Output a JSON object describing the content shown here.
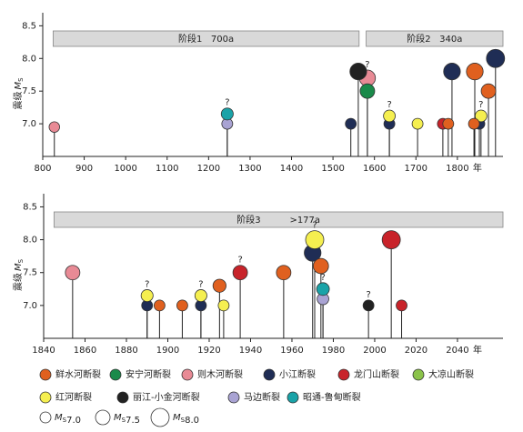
{
  "chart_data": [
    {
      "type": "lollipop",
      "x_label": "年",
      "y_label": "震级",
      "xlim": [
        800,
        1910
      ],
      "xticks": [
        800,
        900,
        1000,
        1100,
        1200,
        1300,
        1400,
        1500,
        1600,
        1700,
        1800
      ],
      "ylim": [
        6.5,
        8.7
      ],
      "yticks": [
        {
          "value": 7,
          "label": "7.0"
        },
        {
          "value": 7.5,
          "label": "7.5"
        },
        {
          "value": 8,
          "label": "8.0"
        },
        {
          "value": 8.5,
          "label": "8.5"
        }
      ],
      "phases": [
        {
          "label": "阶段1   700a",
          "span": [
            825,
            1563
          ]
        },
        {
          "label": "阶段2   340a",
          "span": [
            1580,
            1910
          ]
        }
      ],
      "series": [
        {
          "color": "#e88a95",
          "x": [
            828,
            1583
          ],
          "values": [
            6.95,
            7.7
          ],
          "notes": [
            null,
            "?"
          ]
        },
        {
          "color": "#a9a3d3",
          "x": [
            1245
          ],
          "values": [
            7.0
          ],
          "notes": [
            null
          ]
        },
        {
          "color": "#1aa3a8",
          "x": [
            1245
          ],
          "values": [
            7.15
          ],
          "notes": [
            "?"
          ]
        },
        {
          "color": "#1f2d55",
          "x": [
            1543,
            1636,
            1787,
            1853,
            1892
          ],
          "values": [
            7.0,
            7.0,
            7.8,
            7.0,
            8.0
          ],
          "notes": [
            null,
            null,
            null,
            null,
            null
          ]
        },
        {
          "color": "#222222",
          "x": [
            1561
          ],
          "values": [
            7.8
          ],
          "notes": [
            null
          ]
        },
        {
          "color": "#1a8a4a",
          "x": [
            1583
          ],
          "values": [
            7.5
          ],
          "notes": [
            null
          ]
        },
        {
          "color": "#f5ef50",
          "x": [
            1636,
            1704,
            1857
          ],
          "values": [
            7.12,
            7.0,
            7.12
          ],
          "notes": [
            "?",
            null,
            "?"
          ]
        },
        {
          "color": "#c8232a",
          "x": [
            1765
          ],
          "values": [
            7.0
          ],
          "notes": [
            null
          ]
        },
        {
          "color": "#e0601f",
          "x": [
            1778,
            1842,
            1840,
            1875
          ],
          "values": [
            7.0,
            7.8,
            7.0,
            7.5
          ],
          "notes": [
            null,
            null,
            null,
            null
          ]
        }
      ]
    },
    {
      "type": "lollipop",
      "x_label": "年",
      "y_label": "震级",
      "xlim": [
        1840,
        2062
      ],
      "xticks": [
        1840,
        1860,
        1880,
        1900,
        1920,
        1940,
        1960,
        1980,
        2000,
        2020,
        2040
      ],
      "ylim": [
        6.5,
        8.7
      ],
      "yticks": [
        {
          "value": 7,
          "label": "7.0"
        },
        {
          "value": 7.5,
          "label": "7.5"
        },
        {
          "value": 8,
          "label": "8.0"
        },
        {
          "value": 8.5,
          "label": "8.5"
        }
      ],
      "phases": [
        {
          "label": "阶段3          >177a",
          "span": [
            1845,
            2062
          ]
        }
      ],
      "series": [
        {
          "color": "#e88a95",
          "x": [
            1854
          ],
          "values": [
            7.5
          ],
          "notes": [
            null
          ]
        },
        {
          "color": "#1f2d55",
          "x": [
            1890,
            1916,
            1970
          ],
          "values": [
            7.0,
            7.0,
            7.8
          ],
          "notes": [
            null,
            null,
            null
          ]
        },
        {
          "color": "#f5ef50",
          "x": [
            1890,
            1916,
            1927,
            1971
          ],
          "values": [
            7.15,
            7.15,
            7.0,
            8.0
          ],
          "notes": [
            "?",
            "?",
            null,
            "?"
          ]
        },
        {
          "color": "#e0601f",
          "x": [
            1896,
            1907,
            1925,
            1956,
            1974
          ],
          "values": [
            7.0,
            7.0,
            7.3,
            7.5,
            7.6
          ],
          "notes": [
            null,
            null,
            null,
            null,
            null
          ]
        },
        {
          "color": "#c8232a",
          "x": [
            1935,
            2008,
            2013
          ],
          "values": [
            7.5,
            8.0,
            7.0
          ],
          "notes": [
            "?",
            null,
            null
          ]
        },
        {
          "color": "#a9a3d3",
          "x": [
            1975
          ],
          "values": [
            7.1
          ],
          "notes": [
            null
          ]
        },
        {
          "color": "#1aa3a8",
          "x": [
            1975
          ],
          "values": [
            7.25
          ],
          "notes": [
            "?"
          ]
        },
        {
          "color": "#222222",
          "x": [
            1997
          ],
          "values": [
            7.0
          ],
          "notes": [
            "?"
          ]
        }
      ]
    }
  ],
  "magnitude_symbol": {
    "letter": "M",
    "subscript": "S"
  },
  "legend": {
    "faults": [
      {
        "name": "鲜水河断裂",
        "color": "#e0601f"
      },
      {
        "name": "安宁河断裂",
        "color": "#1a8a4a"
      },
      {
        "name": "则木河断裂",
        "color": "#e88a95"
      },
      {
        "name": "小江断裂",
        "color": "#1f2d55"
      },
      {
        "name": "龙门山断裂",
        "color": "#c8232a"
      },
      {
        "name": "大凉山断裂",
        "color": "#8bc34a"
      },
      {
        "name": "红河断裂",
        "color": "#f5ef50"
      },
      {
        "name": "丽江-小金河断裂",
        "color": "#222222"
      },
      {
        "name": "马边断裂",
        "color": "#a9a3d3"
      },
      {
        "name": "昭通-鲁甸断裂",
        "color": "#1aa3a8"
      }
    ],
    "sizes": [
      {
        "value": 7.0,
        "label": "7.0"
      },
      {
        "value": 7.5,
        "label": "7.5"
      },
      {
        "value": 8.0,
        "label": "8.0"
      }
    ]
  }
}
